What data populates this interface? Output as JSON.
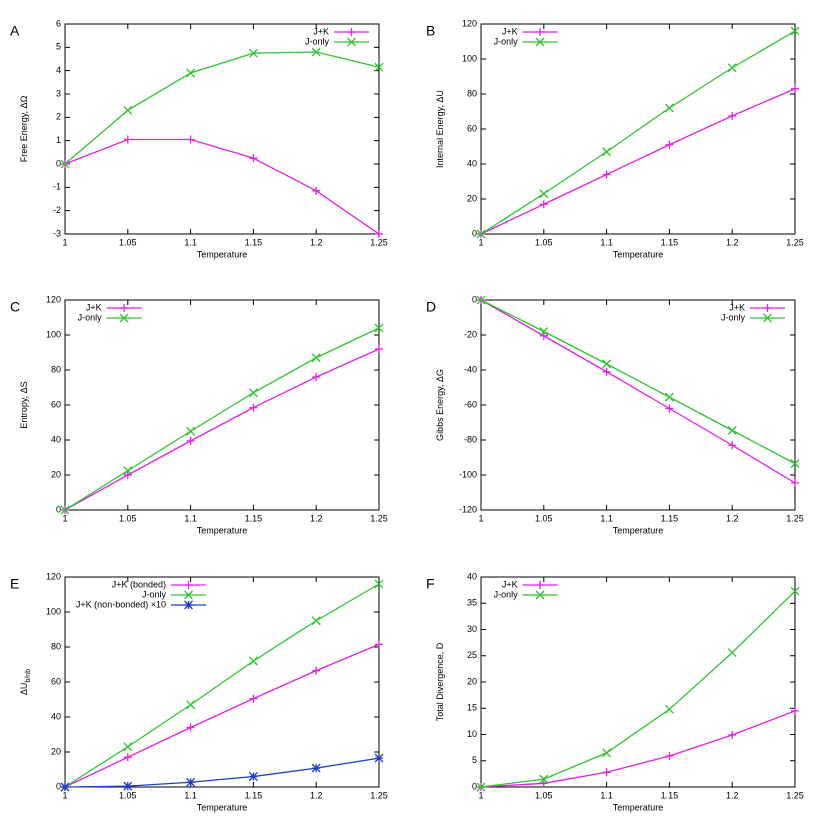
{
  "chart_data": [
    {
      "type": "line",
      "label": "A",
      "x_label": "Temperature",
      "y_label": "Free Energy, ΔΩ",
      "x": [
        1,
        1.05,
        1.1,
        1.15,
        1.2,
        1.25
      ],
      "xlim": [
        1,
        1.25
      ],
      "xticks": [
        1,
        1.05,
        1.1,
        1.15,
        1.2,
        1.25
      ],
      "ylim": [
        -3,
        6
      ],
      "yticks": [
        -3,
        -2,
        -1,
        0,
        1,
        2,
        3,
        4,
        5,
        6
      ],
      "legend": "upper right",
      "series": [
        {
          "name": "J+K",
          "color": "#e61ee6",
          "marker": "plus",
          "values": [
            0,
            1.05,
            1.05,
            0.25,
            -1.15,
            -3.0
          ]
        },
        {
          "name": "J-only",
          "color": "#2ec42e",
          "marker": "cross",
          "values": [
            0,
            2.3,
            3.9,
            4.75,
            4.8,
            4.15
          ]
        }
      ]
    },
    {
      "type": "line",
      "label": "B",
      "x_label": "Temperature",
      "y_label": "Internal Energy, ΔU",
      "x": [
        1,
        1.05,
        1.1,
        1.15,
        1.2,
        1.25
      ],
      "xlim": [
        1,
        1.25
      ],
      "xticks": [
        1,
        1.05,
        1.1,
        1.15,
        1.2,
        1.25
      ],
      "ylim": [
        0,
        120
      ],
      "yticks": [
        0,
        20,
        40,
        60,
        80,
        100,
        120
      ],
      "legend": "upper left",
      "series": [
        {
          "name": "J+K",
          "color": "#e61ee6",
          "marker": "plus",
          "values": [
            0,
            17,
            34,
            51,
            67.5,
            83
          ]
        },
        {
          "name": "J-only",
          "color": "#2ec42e",
          "marker": "cross",
          "values": [
            0,
            23,
            47,
            72,
            95,
            116
          ]
        }
      ]
    },
    {
      "type": "line",
      "label": "C",
      "x_label": "Temperature",
      "y_label": "Entropy, ΔS",
      "x": [
        1,
        1.05,
        1.1,
        1.15,
        1.2,
        1.25
      ],
      "xlim": [
        1,
        1.25
      ],
      "xticks": [
        1,
        1.05,
        1.1,
        1.15,
        1.2,
        1.25
      ],
      "ylim": [
        0,
        120
      ],
      "yticks": [
        0,
        20,
        40,
        60,
        80,
        100,
        120
      ],
      "legend": "upper left",
      "series": [
        {
          "name": "J+K",
          "color": "#e61ee6",
          "marker": "plus",
          "values": [
            0,
            20,
            39.5,
            58.5,
            76,
            92
          ]
        },
        {
          "name": "J-only",
          "color": "#2ec42e",
          "marker": "cross",
          "values": [
            0,
            22.5,
            45,
            67,
            87,
            104
          ]
        }
      ]
    },
    {
      "type": "line",
      "label": "D",
      "x_label": "Temperature",
      "y_label": "Gibbs Energy, ΔG",
      "x": [
        1,
        1.05,
        1.1,
        1.15,
        1.2,
        1.25
      ],
      "xlim": [
        1,
        1.25
      ],
      "xticks": [
        1,
        1.05,
        1.1,
        1.15,
        1.2,
        1.25
      ],
      "ylim": [
        -120,
        0
      ],
      "yticks": [
        -120,
        -100,
        -80,
        -60,
        -40,
        -20,
        0
      ],
      "legend": "upper right",
      "series": [
        {
          "name": "J+K",
          "color": "#e61ee6",
          "marker": "plus",
          "values": [
            0,
            -20.5,
            -41,
            -62,
            -83,
            -104.5
          ]
        },
        {
          "name": "J-only",
          "color": "#2ec42e",
          "marker": "cross",
          "values": [
            0,
            -18,
            -36.5,
            -55.5,
            -74.5,
            -93.5
          ]
        }
      ]
    },
    {
      "type": "line",
      "label": "E",
      "x_label": "Temperature",
      "y_label": "ΔU",
      "y_label_subscript": "b/nb",
      "x": [
        1,
        1.05,
        1.1,
        1.15,
        1.2,
        1.25
      ],
      "xlim": [
        1,
        1.25
      ],
      "xticks": [
        1,
        1.05,
        1.1,
        1.15,
        1.2,
        1.25
      ],
      "ylim": [
        0,
        120
      ],
      "yticks": [
        0,
        20,
        40,
        60,
        80,
        100,
        120
      ],
      "legend": "upper left",
      "series": [
        {
          "name": "J+K (bonded)",
          "color": "#e61ee6",
          "marker": "plus",
          "values": [
            0,
            17,
            34,
            50.5,
            66.5,
            81.5
          ]
        },
        {
          "name": "J-only",
          "color": "#2ec42e",
          "marker": "cross",
          "values": [
            0,
            23,
            47,
            72,
            95,
            116
          ]
        },
        {
          "name": "J+K (non-bonded) ×10",
          "color": "#1e3ccc",
          "marker": "star",
          "values": [
            0,
            0.5,
            2.7,
            6,
            10.8,
            16.5
          ]
        }
      ]
    },
    {
      "type": "line",
      "label": "F",
      "x_label": "Temperature",
      "y_label": "Total Divergence, D",
      "x": [
        1,
        1.05,
        1.1,
        1.15,
        1.2,
        1.25
      ],
      "xlim": [
        1,
        1.25
      ],
      "xticks": [
        1,
        1.05,
        1.1,
        1.15,
        1.2,
        1.25
      ],
      "ylim": [
        0,
        40
      ],
      "yticks": [
        0,
        5,
        10,
        15,
        20,
        25,
        30,
        35,
        40
      ],
      "legend": "upper left",
      "series": [
        {
          "name": "J+K",
          "color": "#e61ee6",
          "marker": "plus",
          "values": [
            0,
            0.7,
            2.8,
            5.9,
            9.9,
            14.5
          ]
        },
        {
          "name": "J-only",
          "color": "#2ec42e",
          "marker": "cross",
          "values": [
            0,
            1.5,
            6.5,
            14.8,
            25.6,
            37.3
          ]
        }
      ]
    }
  ]
}
